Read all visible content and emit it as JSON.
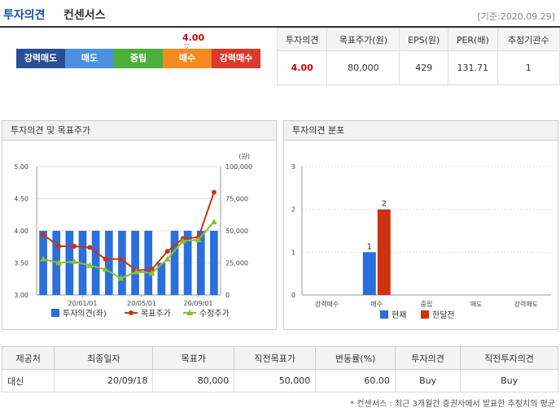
{
  "header": {
    "title_main": "투자의견",
    "title_sub": "컨센서스",
    "date": "[기준:2020.09.29]"
  },
  "score": {
    "value": "4.00",
    "marker": "▽"
  },
  "scale": [
    {
      "label": "강력매도",
      "color": "#2a4f94"
    },
    {
      "label": "매도",
      "color": "#4a90e2"
    },
    {
      "label": "중립",
      "color": "#4caf3a"
    },
    {
      "label": "매수",
      "color": "#f68a1e"
    },
    {
      "label": "강력매수",
      "color": "#d93a2b"
    }
  ],
  "consensus": {
    "headers": [
      "투자의견",
      "목표주가(원)",
      "EPS(원)",
      "PER(배)",
      "추정기관수"
    ],
    "values": [
      "4.00",
      "80,000",
      "429",
      "131.71",
      "1"
    ]
  },
  "chart1": {
    "title": "투자의견 및 목표주가",
    "unit": "(원)",
    "left_ticks": [
      "5.00",
      "4.50",
      "4.00",
      "3.50",
      "3.00"
    ],
    "right_ticks": [
      "100,000",
      "75,000",
      "50,000",
      "25,000",
      "0"
    ],
    "x_ticks": [
      "20/01/01",
      "20/05/01",
      "20/09/01"
    ],
    "legend": [
      "투자의견(좌)",
      "목표주가",
      "수정주가"
    ],
    "colors": {
      "bar": "#2a6fdb",
      "target": "#cc3311",
      "price": "#88c22a"
    }
  },
  "chart2": {
    "title": "투자의견 분포",
    "y_ticks": [
      "3",
      "2",
      "1",
      "0"
    ],
    "categories": [
      "강력매수",
      "매수",
      "중립",
      "매도",
      "강력매도"
    ],
    "bar_labels": [
      "1",
      "2"
    ],
    "legend": [
      "현재",
      "한달전"
    ],
    "colors": {
      "current": "#2a6fdb",
      "month_ago": "#cc3311"
    }
  },
  "chart_data": [
    {
      "type": "bar",
      "ylim": [
        3.0,
        5.0
      ],
      "y2lim": [
        0,
        100000
      ],
      "series": [
        {
          "name": "투자의견(좌)",
          "values": [
            4.0,
            4.0,
            4.0,
            4.0,
            4.0,
            4.0,
            4.0,
            4.0,
            4.0,
            3.5,
            4.0,
            4.0,
            4.0,
            4.0
          ]
        },
        {
          "name": "목표주가",
          "values": [
            47000,
            38000,
            38000,
            37000,
            28000,
            28000,
            19000,
            20000,
            34000,
            44000,
            45000,
            80000
          ]
        },
        {
          "name": "수정주가",
          "values": [
            28000,
            25000,
            26000,
            23000,
            20000,
            13000,
            18000,
            17000,
            28000,
            42000,
            43000,
            57000
          ]
        }
      ]
    },
    {
      "type": "bar",
      "categories": [
        "강력매수",
        "매수",
        "중립",
        "매도",
        "강력매도"
      ],
      "ylim": [
        0,
        3
      ],
      "series": [
        {
          "name": "현재",
          "values": [
            0,
            1,
            0,
            0,
            0
          ]
        },
        {
          "name": "한달전",
          "values": [
            0,
            2,
            0,
            0,
            0
          ]
        }
      ]
    }
  ],
  "detail": {
    "headers": [
      "제공처",
      "최종일자",
      "목표가",
      "직전목표가",
      "변동률(%)",
      "투자의견",
      "직전투자의견"
    ],
    "rows": [
      [
        "대신",
        "20/09/18",
        "80,000",
        "50,000",
        "60.00",
        "Buy",
        "Buy"
      ]
    ]
  },
  "footnote": "* 컨센서스 : 최근 3개월간 증권사에서 발표한 추정치의 평균"
}
